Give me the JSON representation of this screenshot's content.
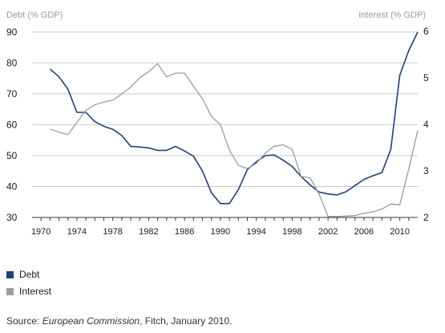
{
  "chart_data": {
    "type": "line",
    "left_axis_title": "Debt (% GDP)",
    "right_axis_title": "Interest (% GDP)",
    "y_left": {
      "ticks": [
        30,
        40,
        50,
        60,
        70,
        80,
        90
      ],
      "lim": [
        30,
        91
      ]
    },
    "y_right": {
      "ticks": [
        2,
        3,
        4,
        5,
        6
      ],
      "lim": [
        2,
        6.05
      ]
    },
    "x": {
      "ticks": [
        1970,
        1974,
        1978,
        1982,
        1986,
        1990,
        1994,
        1998,
        2002,
        2006,
        2010
      ],
      "lim": [
        1969,
        2012
      ]
    },
    "grid": "horizontal",
    "legend_position": "bottom-left",
    "series": [
      {
        "name": "Debt",
        "axis": "left",
        "color": "#1f3f7a",
        "points": [
          [
            1971,
            78
          ],
          [
            1972,
            75.5
          ],
          [
            1973,
            71.5
          ],
          [
            1974,
            64
          ],
          [
            1975,
            64
          ],
          [
            1976,
            61
          ],
          [
            1977,
            59.5
          ],
          [
            1978,
            58.5
          ],
          [
            1979,
            56.5
          ],
          [
            1980,
            53
          ],
          [
            1981,
            52.8
          ],
          [
            1982,
            52.5
          ],
          [
            1983,
            51.7
          ],
          [
            1984,
            51.7
          ],
          [
            1985,
            53
          ],
          [
            1986,
            51.5
          ],
          [
            1987,
            49.8
          ],
          [
            1988,
            45
          ],
          [
            1989,
            38
          ],
          [
            1990,
            34.5
          ],
          [
            1991,
            34.5
          ],
          [
            1992,
            39
          ],
          [
            1993,
            45.5
          ],
          [
            1994,
            48
          ],
          [
            1995,
            50
          ],
          [
            1996,
            50.2
          ],
          [
            1997,
            48.5
          ],
          [
            1998,
            46.5
          ],
          [
            1999,
            43.2
          ],
          [
            2000,
            40.5
          ],
          [
            2001,
            38.2
          ],
          [
            2002,
            37.6
          ],
          [
            2003,
            37.3
          ],
          [
            2004,
            38.3
          ],
          [
            2005,
            40.3
          ],
          [
            2006,
            42.3
          ],
          [
            2007,
            43.5
          ],
          [
            2008,
            44.5
          ],
          [
            2009,
            52
          ],
          [
            2010,
            76
          ],
          [
            2011,
            84
          ],
          [
            2012,
            90
          ]
        ]
      },
      {
        "name": "Interest",
        "axis": "right",
        "color": "#9c9c9c",
        "points": [
          [
            1971,
            3.9
          ],
          [
            1972,
            3.83
          ],
          [
            1973,
            3.78
          ],
          [
            1974,
            4.04
          ],
          [
            1975,
            4.3
          ],
          [
            1976,
            4.42
          ],
          [
            1977,
            4.48
          ],
          [
            1978,
            4.52
          ],
          [
            1979,
            4.65
          ],
          [
            1980,
            4.8
          ],
          [
            1981,
            5.0
          ],
          [
            1982,
            5.13
          ],
          [
            1983,
            5.3
          ],
          [
            1984,
            5.02
          ],
          [
            1985,
            5.1
          ],
          [
            1986,
            5.1
          ],
          [
            1987,
            4.82
          ],
          [
            1988,
            4.55
          ],
          [
            1989,
            4.17
          ],
          [
            1990,
            3.99
          ],
          [
            1991,
            3.45
          ],
          [
            1992,
            3.12
          ],
          [
            1993,
            3.05
          ],
          [
            1994,
            3.16
          ],
          [
            1995,
            3.38
          ],
          [
            1996,
            3.53
          ],
          [
            1997,
            3.56
          ],
          [
            1998,
            3.46
          ],
          [
            1999,
            2.88
          ],
          [
            2000,
            2.85
          ],
          [
            2001,
            2.5
          ],
          [
            2002,
            2.02
          ],
          [
            2003,
            2.02
          ],
          [
            2004,
            2.03
          ],
          [
            2005,
            2.04
          ],
          [
            2006,
            2.09
          ],
          [
            2007,
            2.12
          ],
          [
            2008,
            2.18
          ],
          [
            2009,
            2.29
          ],
          [
            2010,
            2.27
          ],
          [
            2011,
            3.04
          ],
          [
            2012,
            3.87
          ]
        ]
      }
    ]
  },
  "legend": {
    "debt_label": "Debt",
    "interest_label": "Interest"
  },
  "source": {
    "prefix": "Source: ",
    "italic": "European Commission",
    "suffix": ", Fitch, January 2010."
  },
  "colors": {
    "debt": "#1f3f7a",
    "interest": "#9c9c9c",
    "grid": "#c9c9c9",
    "axis": "#333333"
  }
}
